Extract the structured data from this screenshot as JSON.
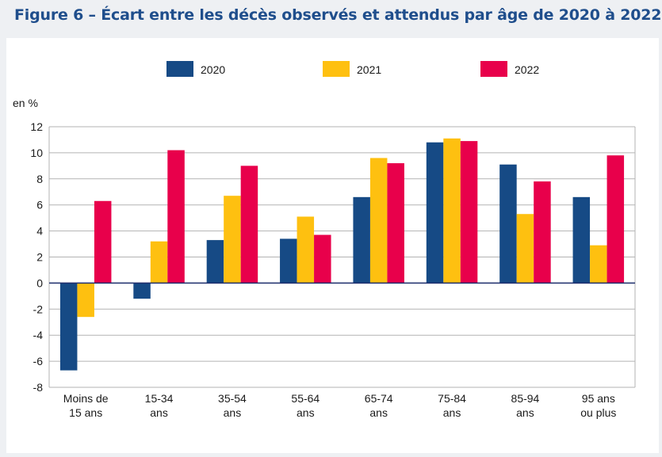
{
  "figure_title": "Figure 6 – Écart entre les décès observés et attendus par âge de 2020 à 2022",
  "chart_data": {
    "type": "bar",
    "title": "Figure 6 – Écart entre les décès observés et attendus par âge de 2020 à 2022",
    "ylabel": "en %",
    "xlabel": "",
    "ylim": [
      -8,
      12
    ],
    "yticks": [
      12,
      10,
      8,
      6,
      4,
      2,
      0,
      -2,
      -4,
      -6,
      -8
    ],
    "grid": true,
    "legend_position": "top",
    "categories": [
      [
        "Moins de",
        "15 ans"
      ],
      [
        "15-34",
        "ans"
      ],
      [
        "35-54",
        "ans"
      ],
      [
        "55-64",
        "ans"
      ],
      [
        "65-74",
        "ans"
      ],
      [
        "75-84",
        "ans"
      ],
      [
        "85-94",
        "ans"
      ],
      [
        "95 ans",
        "ou plus"
      ]
    ],
    "series": [
      {
        "name": "2020",
        "color": "#164a85",
        "values": [
          -6.7,
          -1.2,
          3.3,
          3.4,
          6.6,
          10.8,
          9.1,
          6.6
        ]
      },
      {
        "name": "2021",
        "color": "#fec010",
        "values": [
          -2.6,
          3.2,
          6.7,
          5.1,
          9.6,
          11.1,
          5.3,
          2.9
        ]
      },
      {
        "name": "2022",
        "color": "#e8004b",
        "values": [
          6.3,
          10.2,
          9.0,
          3.7,
          9.2,
          10.9,
          7.8,
          9.8
        ]
      }
    ]
  }
}
